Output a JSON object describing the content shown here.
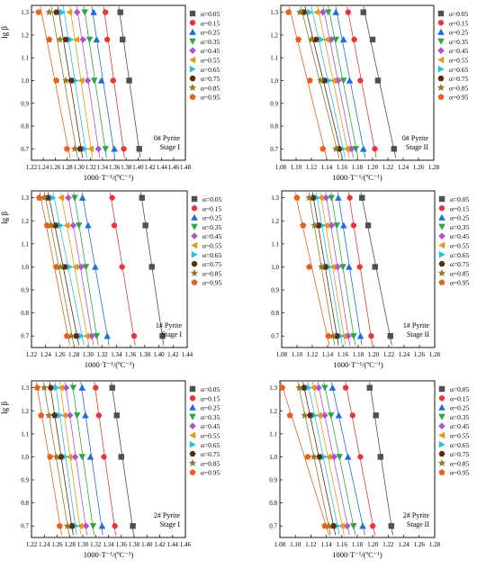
{
  "figure": {
    "legend_alphas": [
      "α=0.05",
      "α=0.15",
      "α=0.25",
      "α=0.35",
      "α=0.45",
      "α=0.55",
      "α=0.65",
      "α=0.75",
      "α=0.85",
      "α=0.95"
    ],
    "series_colors": [
      "#505050",
      "#e8343b",
      "#1f6fd6",
      "#2fa54a",
      "#b152c9",
      "#e09a17",
      "#2bbfe0",
      "#5b2a12",
      "#8f7b2a",
      "#e8601c"
    ],
    "series_markers": [
      "square",
      "circle",
      "triangle-up",
      "triangle-down",
      "diamond",
      "triangle-left",
      "triangle-right",
      "hexagon",
      "star",
      "pentagon"
    ]
  },
  "chart_data": [
    {
      "type": "scatter",
      "ylabel": "lg β",
      "xlabel": "1000·T⁻¹/(ºC⁻¹)",
      "annotation": [
        "0# Pyrite",
        "Stage I"
      ],
      "xlim": [
        1.22,
        1.48
      ],
      "ylim": [
        0.65,
        1.33
      ],
      "xticks": [
        "1.22",
        "1.24",
        "1.26",
        "1.28",
        "1.30",
        "1.32",
        "1.34",
        "1.36",
        "1.38",
        "1.40",
        "1.42",
        "1.44",
        "1.46",
        "1.48"
      ],
      "yticks": [
        "0.7",
        "0.8",
        "0.9",
        "1.0",
        "1.1",
        "1.2",
        "1.3"
      ],
      "y": [
        1.3,
        1.18,
        1.0,
        0.7
      ],
      "series": [
        {
          "name": "α=0.05",
          "x": [
            1.37,
            1.374,
            1.385,
            1.402
          ]
        },
        {
          "name": "α=0.15",
          "x": [
            1.345,
            1.348,
            1.358,
            1.376
          ]
        },
        {
          "name": "α=0.25",
          "x": [
            1.325,
            1.33,
            1.338,
            1.36
          ]
        },
        {
          "name": "α=0.35",
          "x": [
            1.31,
            1.318,
            1.326,
            1.345
          ]
        },
        {
          "name": "α=0.45",
          "x": [
            1.297,
            1.307,
            1.315,
            1.333
          ]
        },
        {
          "name": "α=0.55",
          "x": [
            1.284,
            1.296,
            1.304,
            1.32
          ]
        },
        {
          "name": "α=0.65",
          "x": [
            1.272,
            1.286,
            1.294,
            1.31
          ]
        },
        {
          "name": "α=0.75",
          "x": [
            1.262,
            1.278,
            1.287,
            1.302
          ]
        },
        {
          "name": "α=0.85",
          "x": [
            1.25,
            1.268,
            1.278,
            1.293
          ]
        },
        {
          "name": "α=0.95",
          "x": [
            1.232,
            1.25,
            1.262,
            1.28
          ]
        }
      ]
    },
    {
      "type": "scatter",
      "ylabel": "",
      "xlabel": "1000·T⁻¹/(ºC⁻¹)",
      "annotation": [
        "0# Pyrite",
        "Stage II"
      ],
      "xlim": [
        1.08,
        1.28
      ],
      "ylim": [
        0.65,
        1.33
      ],
      "xticks": [
        "1.08",
        "1.10",
        "1.12",
        "1.14",
        "1.16",
        "1.18",
        "1.20",
        "1.22",
        "1.24",
        "1.26",
        "1.28"
      ],
      "yticks": [
        "0.7",
        "0.8",
        "0.9",
        "1.0",
        "1.1",
        "1.2",
        "1.3"
      ],
      "y": [
        1.3,
        1.18,
        1.0,
        0.7
      ],
      "series": [
        {
          "name": "α=0.05",
          "x": [
            1.188,
            1.2,
            1.207,
            1.228
          ]
        },
        {
          "name": "α=0.15",
          "x": [
            1.168,
            1.176,
            1.184,
            1.203
          ]
        },
        {
          "name": "α=0.25",
          "x": [
            1.152,
            1.162,
            1.17,
            1.188
          ]
        },
        {
          "name": "α=0.35",
          "x": [
            1.142,
            1.152,
            1.162,
            1.178
          ]
        },
        {
          "name": "α=0.45",
          "x": [
            1.135,
            1.146,
            1.155,
            1.172
          ]
        },
        {
          "name": "α=0.55",
          "x": [
            1.127,
            1.14,
            1.149,
            1.166
          ]
        },
        {
          "name": "α=0.65",
          "x": [
            1.118,
            1.133,
            1.143,
            1.16
          ]
        },
        {
          "name": "α=0.75",
          "x": [
            1.11,
            1.126,
            1.137,
            1.156
          ]
        },
        {
          "name": "α=0.85",
          "x": [
            1.105,
            1.12,
            1.132,
            1.152
          ]
        },
        {
          "name": "α=0.95",
          "x": [
            1.09,
            1.103,
            1.118,
            1.135
          ]
        }
      ]
    },
    {
      "type": "scatter",
      "ylabel": "lg β",
      "xlabel": "1000·T⁻¹/(ºC⁻¹)",
      "annotation": [
        "1# Pyrite",
        "Stage I"
      ],
      "xlim": [
        1.22,
        1.44
      ],
      "ylim": [
        0.65,
        1.33
      ],
      "xticks": [
        "1.22",
        "1.24",
        "1.26",
        "1.28",
        "1.30",
        "1.32",
        "1.34",
        "1.36",
        "1.38",
        "1.40",
        "1.42",
        "1.44"
      ],
      "yticks": [
        "0.7",
        "0.8",
        "0.9",
        "1.0",
        "1.1",
        "1.2",
        "1.3"
      ],
      "y": [
        1.3,
        1.18,
        1.0,
        0.7
      ],
      "series": [
        {
          "name": "α=0.05",
          "x": [
            1.376,
            1.381,
            1.39,
            1.405
          ]
        },
        {
          "name": "α=0.15",
          "x": [
            1.334,
            1.337,
            1.348,
            1.365
          ]
        },
        {
          "name": "α=0.25",
          "x": [
            1.292,
            1.3,
            1.31,
            1.327
          ]
        },
        {
          "name": "α=0.35",
          "x": [
            1.281,
            1.287,
            1.297,
            1.312
          ]
        },
        {
          "name": "α=0.45",
          "x": [
            1.272,
            1.279,
            1.29,
            1.305
          ]
        },
        {
          "name": "α=0.55",
          "x": [
            1.262,
            1.27,
            1.282,
            1.298
          ]
        },
        {
          "name": "α=0.65",
          "x": [
            1.25,
            1.261,
            1.274,
            1.29
          ]
        },
        {
          "name": "α=0.75",
          "x": [
            1.243,
            1.254,
            1.267,
            1.283
          ]
        },
        {
          "name": "α=0.85",
          "x": [
            1.238,
            1.248,
            1.261,
            1.276
          ]
        },
        {
          "name": "α=0.95",
          "x": [
            1.231,
            1.242,
            1.255,
            1.27
          ]
        }
      ]
    },
    {
      "type": "scatter",
      "ylabel": "",
      "xlabel": "1000·T⁻¹/(ºC⁻¹)",
      "annotation": [
        "1# Pyrite",
        "Stage II"
      ],
      "xlim": [
        1.08,
        1.28
      ],
      "ylim": [
        0.65,
        1.33
      ],
      "xticks": [
        "1.08",
        "1.10",
        "1.12",
        "1.14",
        "1.16",
        "1.18",
        "1.20",
        "1.22",
        "1.24",
        "1.26",
        "1.28"
      ],
      "yticks": [
        "0.7",
        "0.8",
        "0.9",
        "1.0",
        "1.1",
        "1.2",
        "1.3"
      ],
      "y": [
        1.3,
        1.18,
        1.0,
        0.7
      ],
      "series": [
        {
          "name": "α=0.05",
          "x": [
            1.185,
            1.193,
            1.202,
            1.222
          ]
        },
        {
          "name": "α=0.15",
          "x": [
            1.169,
            1.174,
            1.182,
            1.197
          ]
        },
        {
          "name": "α=0.25",
          "x": [
            1.154,
            1.161,
            1.168,
            1.183
          ]
        },
        {
          "name": "α=0.35",
          "x": [
            1.145,
            1.152,
            1.16,
            1.174
          ]
        },
        {
          "name": "α=0.45",
          "x": [
            1.138,
            1.145,
            1.153,
            1.167
          ]
        },
        {
          "name": "α=0.55",
          "x": [
            1.131,
            1.138,
            1.147,
            1.161
          ]
        },
        {
          "name": "α=0.65",
          "x": [
            1.126,
            1.133,
            1.142,
            1.157
          ]
        },
        {
          "name": "α=0.75",
          "x": [
            1.121,
            1.128,
            1.137,
            1.152
          ]
        },
        {
          "name": "α=0.85",
          "x": [
            1.116,
            1.123,
            1.132,
            1.147
          ]
        },
        {
          "name": "α=0.95",
          "x": [
            1.1,
            1.108,
            1.116,
            1.141
          ]
        }
      ]
    },
    {
      "type": "scatter",
      "ylabel": "lg β",
      "xlabel": "1000·T⁻¹/(ºC⁻¹)",
      "annotation": [
        "2# Pyrite",
        "Stage I"
      ],
      "xlim": [
        1.22,
        1.46
      ],
      "ylim": [
        0.65,
        1.33
      ],
      "xticks": [
        "1.22",
        "1.24",
        "1.26",
        "1.28",
        "1.30",
        "1.32",
        "1.34",
        "1.36",
        "1.38",
        "1.40",
        "1.42",
        "1.44",
        "1.46"
      ],
      "yticks": [
        "0.7",
        "0.8",
        "0.9",
        "1.0",
        "1.1",
        "1.2",
        "1.3"
      ],
      "y": [
        1.3,
        1.18,
        1.0,
        0.7
      ],
      "series": [
        {
          "name": "α=0.05",
          "x": [
            1.346,
            1.353,
            1.36,
            1.378
          ]
        },
        {
          "name": "α=0.15",
          "x": [
            1.32,
            1.325,
            1.333,
            1.35
          ]
        },
        {
          "name": "α=0.25",
          "x": [
            1.299,
            1.304,
            1.312,
            1.33
          ]
        },
        {
          "name": "α=0.35",
          "x": [
            1.285,
            1.291,
            1.299,
            1.316
          ]
        },
        {
          "name": "α=0.45",
          "x": [
            1.274,
            1.28,
            1.288,
            1.305
          ]
        },
        {
          "name": "α=0.55",
          "x": [
            1.266,
            1.271,
            1.279,
            1.296
          ]
        },
        {
          "name": "α=0.65",
          "x": [
            1.259,
            1.264,
            1.272,
            1.289
          ]
        },
        {
          "name": "α=0.75",
          "x": [
            1.25,
            1.256,
            1.266,
            1.283
          ]
        },
        {
          "name": "α=0.85",
          "x": [
            1.24,
            1.247,
            1.259,
            1.276
          ]
        },
        {
          "name": "α=0.95",
          "x": [
            1.229,
            1.235,
            1.249,
            1.264
          ]
        }
      ]
    },
    {
      "type": "scatter",
      "ylabel": "",
      "xlabel": "1000·T⁻¹/(ºC⁻¹)",
      "annotation": [
        "2# Pyrite",
        "Stage II"
      ],
      "xlim": [
        1.08,
        1.28
      ],
      "ylim": [
        0.65,
        1.33
      ],
      "xticks": [
        "1.08",
        "1.10",
        "1.12",
        "1.14",
        "1.16",
        "1.18",
        "1.20",
        "1.22",
        "1.24",
        "1.26",
        "1.28"
      ],
      "yticks": [
        "0.7",
        "0.8",
        "0.9",
        "1.0",
        "1.1",
        "1.2",
        "1.3"
      ],
      "y": [
        1.3,
        1.18,
        1.0,
        0.7
      ],
      "series": [
        {
          "name": "α=0.05",
          "x": [
            1.196,
            1.204,
            1.21,
            1.224
          ]
        },
        {
          "name": "α=0.15",
          "x": [
            1.165,
            1.174,
            1.184,
            1.2
          ]
        },
        {
          "name": "α=0.25",
          "x": [
            1.148,
            1.156,
            1.168,
            1.187
          ]
        },
        {
          "name": "α=0.35",
          "x": [
            1.138,
            1.146,
            1.157,
            1.175
          ]
        },
        {
          "name": "α=0.45",
          "x": [
            1.13,
            1.138,
            1.15,
            1.167
          ]
        },
        {
          "name": "α=0.55",
          "x": [
            1.123,
            1.131,
            1.143,
            1.16
          ]
        },
        {
          "name": "α=0.65",
          "x": [
            1.117,
            1.125,
            1.137,
            1.154
          ]
        },
        {
          "name": "α=0.75",
          "x": [
            1.111,
            1.119,
            1.131,
            1.149
          ]
        },
        {
          "name": "α=0.85",
          "x": [
            1.105,
            1.112,
            1.124,
            1.143
          ]
        },
        {
          "name": "α=0.95",
          "x": [
            1.083,
            1.093,
            1.116,
            1.138
          ]
        }
      ]
    }
  ]
}
